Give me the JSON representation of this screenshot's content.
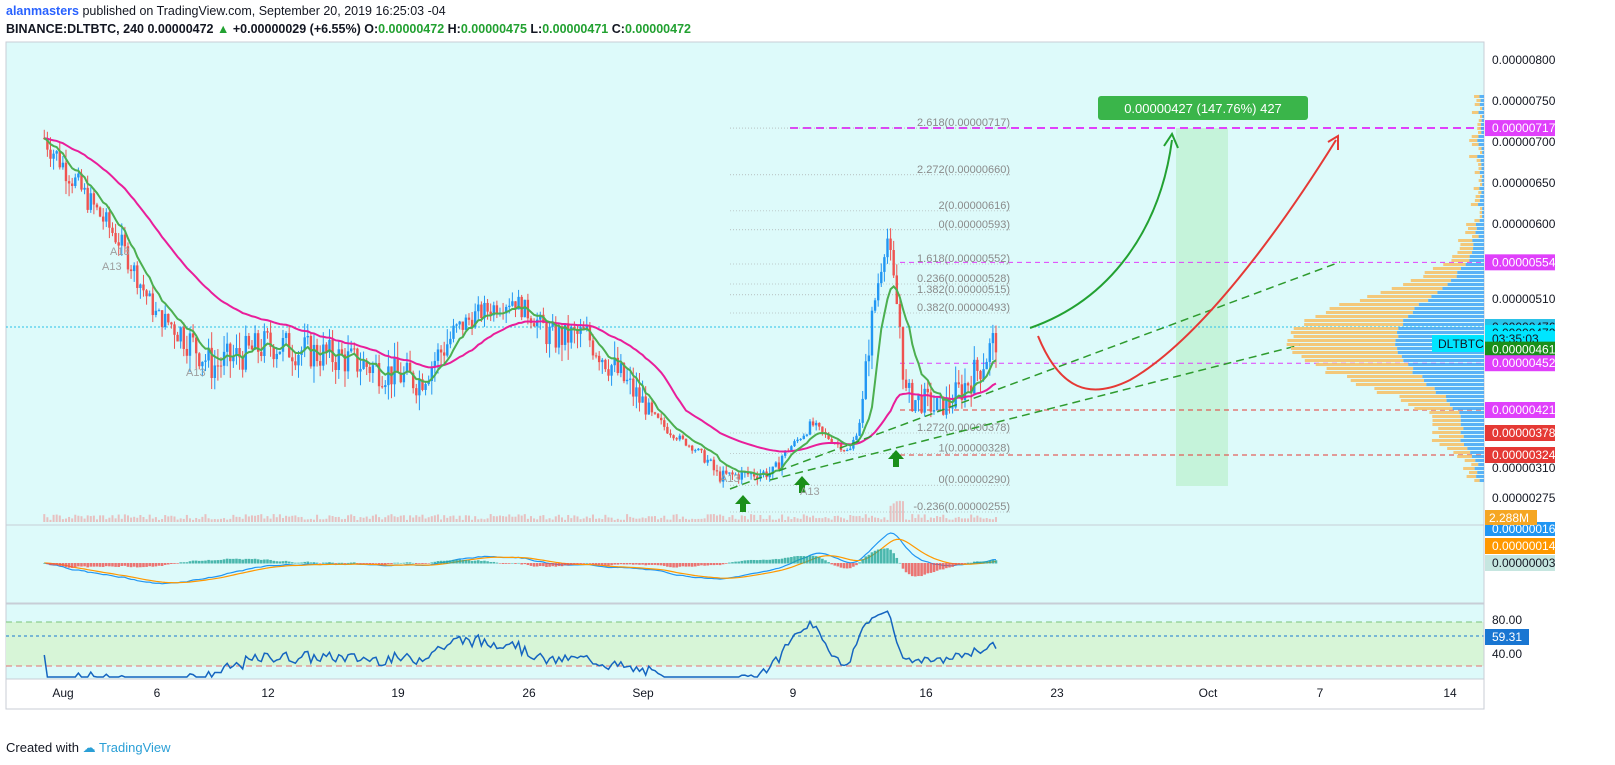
{
  "header": {
    "author": "alanmasters",
    "published_text": "published on TradingView.com, September 20, 2019 16:25:03 -04",
    "symbol": "BINANCE:DLTBTC, 240",
    "last": "0.00000472",
    "change": "+0.00000029 (+6.55%)",
    "o_label": "O:",
    "o": "0.00000472",
    "h_label": "H:",
    "h": "0.00000475",
    "l_label": "L:",
    "l": "0.00000471",
    "c_label": "C:",
    "c": "0.00000472"
  },
  "footer": {
    "created_with": "Created with",
    "brand": "TradingView"
  },
  "colors": {
    "pane_bg": "#ddfafa",
    "up": "#2196f3",
    "down": "#ef5350",
    "ema_fast": "#4caf50",
    "ema_slow": "#e91e9a",
    "magenta": "#e040fb",
    "red_line": "#e53935",
    "green_arrow": "#1a8f1a",
    "rsi_bg": "#d7f5d7"
  },
  "chart_data": {
    "type": "candlestick",
    "symbol": "DLTBTC",
    "timeframe": "240",
    "ylim": [
      2.55e-06,
      8e-06
    ],
    "y_ticks": [
      "0.00000800",
      "0.00000750",
      "0.00000700",
      "0.00000650",
      "0.00000600",
      "0.00000510",
      "0.00000310",
      "0.00000275"
    ],
    "x_ticks": [
      "Aug",
      "6",
      "12",
      "19",
      "26",
      "Sep",
      "9",
      "16",
      "23",
      "Oct",
      "7",
      "14"
    ],
    "price_path": [
      {
        "x": "Jul 31",
        "y": 7.05e-06
      },
      {
        "x": "Aug 2",
        "y": 6.4e-06
      },
      {
        "x": "Aug 4",
        "y": 5.8e-06
      },
      {
        "x": "Aug 6",
        "y": 4.9e-06
      },
      {
        "x": "Aug 9",
        "y": 4.5e-06
      },
      {
        "x": "Aug 12",
        "y": 4.65e-06
      },
      {
        "x": "Aug 16",
        "y": 4.55e-06
      },
      {
        "x": "Aug 20",
        "y": 4.4e-06
      },
      {
        "x": "Aug 23",
        "y": 4.9e-06
      },
      {
        "x": "Aug 25",
        "y": 5.1e-06
      },
      {
        "x": "Aug 27",
        "y": 4.7e-06
      },
      {
        "x": "Aug 29",
        "y": 4.7e-06
      },
      {
        "x": "Sep 1",
        "y": 4.25e-06
      },
      {
        "x": "Sep 5",
        "y": 3e-06
      },
      {
        "x": "Sep 8",
        "y": 3.05e-06
      },
      {
        "x": "Sep 10",
        "y": 3.95e-06
      },
      {
        "x": "Sep 12",
        "y": 3.3e-06
      },
      {
        "x": "Sep 14",
        "y": 5.9e-06
      },
      {
        "x": "Sep 15",
        "y": 4.3e-06
      },
      {
        "x": "Sep 17",
        "y": 4.2e-06
      },
      {
        "x": "Sep 19",
        "y": 4.5e-06
      },
      {
        "x": "Sep 20",
        "y": 4.72e-06
      }
    ],
    "price_labels": [
      {
        "text": "0.00000717",
        "color": "#e040fb",
        "value": 7.17e-06
      },
      {
        "text": "0.00000554",
        "color": "#e040fb",
        "value": 5.54e-06
      },
      {
        "text": "0.00000476",
        "color": "#29c2e8",
        "value": 4.76e-06
      },
      {
        "text": "0.00000472",
        "color": "#00e5ff",
        "value": 4.72e-06
      },
      {
        "text": "03:35:03",
        "color": "#00e5ff",
        "value": 4.68e-06
      },
      {
        "text": "0.00000461",
        "color": "#1a8f1a",
        "value": 4.61e-06
      },
      {
        "text": "0.00000452",
        "color": "#e040fb",
        "value": 4.52e-06
      },
      {
        "text": "0.00000421",
        "color": "#e040fb",
        "value": 4.21e-06
      },
      {
        "text": "0.00000378",
        "color": "#e53935",
        "value": 3.78e-06
      },
      {
        "text": "0.00000324",
        "color": "#e53935",
        "value": 3.24e-06
      }
    ],
    "symbol_tag": "DLTBTC",
    "volume_label": "2.288M",
    "fib_labels": [
      {
        "text": "2.618(0.00000717)",
        "value": 7.17e-06
      },
      {
        "text": "2.272(0.00000660)",
        "value": 6.6e-06
      },
      {
        "text": "2(0.00000616)",
        "value": 6.16e-06
      },
      {
        "text": "0(0.00000593)",
        "value": 5.93e-06
      },
      {
        "text": "1.618(0.00000552)",
        "value": 5.52e-06
      },
      {
        "text": "0.236(0.00000528)",
        "value": 5.28e-06
      },
      {
        "text": "1.382(0.00000515)",
        "value": 5.15e-06
      },
      {
        "text": "0.382(0.00000493)",
        "value": 4.93e-06
      },
      {
        "text": "1.272(0.00000378)",
        "value": 3.78e-06
      },
      {
        "text": "1(0.00000328)",
        "value": 3.28e-06
      },
      {
        "text": "0(0.00000290)",
        "value": 2.9e-06
      },
      {
        "text": "-0.236(0.00000255)",
        "value": 2.55e-06
      }
    ],
    "target_box": {
      "text": "0.00000427 (147.76%) 427"
    },
    "macd": {
      "labels": [
        "0.00000016",
        "0.00000014",
        "0.00000003"
      ]
    },
    "rsi": {
      "value": "59.31",
      "ticks": [
        "80.00",
        "40.00"
      ]
    },
    "pattern_markers": [
      "A13",
      "A13",
      "A13",
      "A13",
      "A13"
    ]
  }
}
